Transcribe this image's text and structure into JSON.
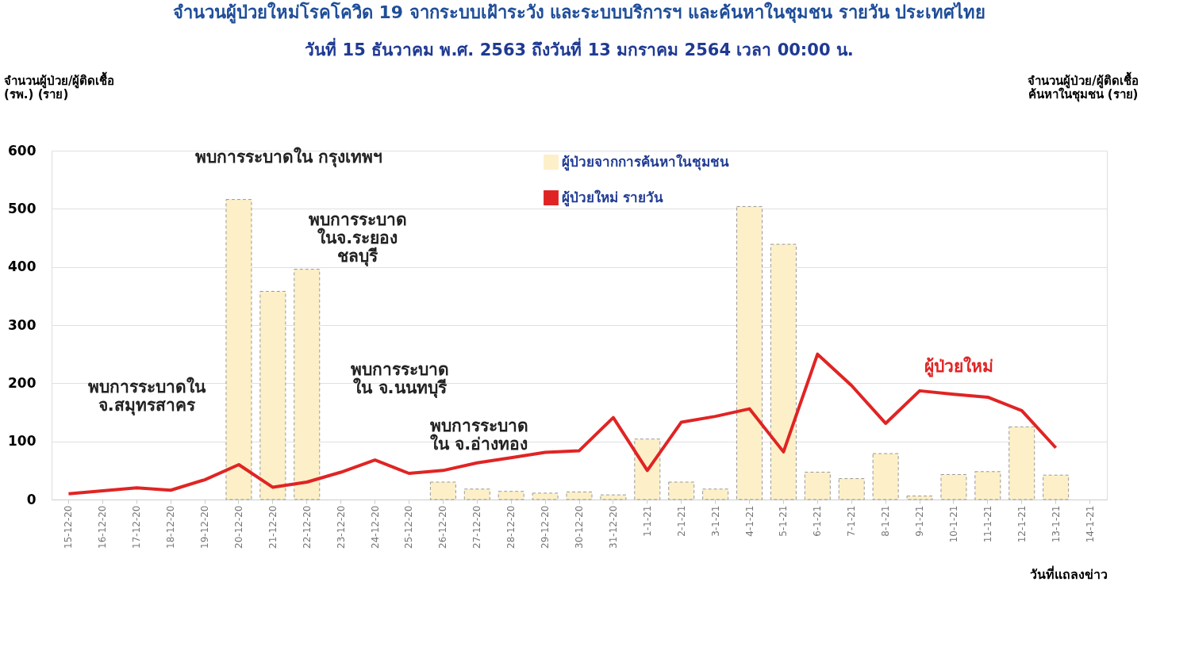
{
  "chart_data": {
    "type": "bar",
    "title": "จำนวนผู้ป่วยใหม่โรคโควิด 19 จากระบบเฝ้าระวัง และระบบบริการฯ และค้นหาในชุมชน รายวัน ประเทศไทย",
    "subtitle": "วันที่ 15 ธันวาคม พ.ศ. 2563 ถึงวันที่ 13 มกราคม 2564 เวลา 00:00 น.",
    "ylabel": "จำนวนผู้ป่วย/ผู้ติดเชื้อ (รพ.) (ราย)",
    "y2label": "จำนวนผู้ป่วย/ผู้ติดเชื้อ ค้นหาในชุมชน (ราย)",
    "xlabel": "วันที่แถลงข่าว",
    "categories": [
      "15-12-20",
      "16-12-20",
      "17-12-20",
      "18-12-20",
      "19-12-20",
      "20-12-20",
      "21-12-20",
      "22-12-20",
      "23-12-20",
      "24-12-20",
      "25-12-20",
      "26-12-20",
      "27-12-20",
      "28-12-20",
      "29-12-20",
      "30-12-20",
      "31-12-20",
      "1-1-21",
      "2-1-21",
      "3-1-21",
      "4-1-21",
      "5-1-21",
      "6-1-21",
      "7-1-21",
      "8-1-21",
      "9-1-21",
      "10-1-21",
      "11-1-21",
      "12-1-21",
      "13-1-21",
      "14-1-21"
    ],
    "series": [
      {
        "name": "ผู้ป่วยจากการค้นหาในชุมชน",
        "color": "#fdf0c8",
        "values": [
          null,
          null,
          null,
          null,
          null,
          516,
          358,
          396,
          null,
          null,
          null,
          30,
          18,
          14,
          11,
          13,
          8,
          104,
          30,
          18,
          504,
          439,
          47,
          36,
          79,
          6,
          43,
          48,
          125,
          42,
          null
        ]
      },
      {
        "name": "ผู้ป่วยใหม่ รายวัน",
        "type": "line",
        "color": "#e02424",
        "values": [
          10,
          15,
          20,
          16,
          34,
          60,
          21,
          30,
          47,
          68,
          45,
          50,
          63,
          72,
          81,
          84,
          141,
          50,
          133,
          143,
          156,
          82,
          250,
          196,
          131,
          187,
          181,
          176,
          153,
          89,
          null
        ]
      }
    ],
    "ylim": [
      0,
      600
    ],
    "yticks": [
      0,
      100,
      200,
      300,
      400,
      500,
      600
    ],
    "grid": "y",
    "legend": "top",
    "marker": "none",
    "line_style": "solid",
    "annotations": [
      "พบการระบาดใน กรุงเทพฯ",
      "พบการระบาด\nในจ.ระยอง\nชลบุรี",
      "พบการระบาดใน\nจ.สมุทรสาคร",
      "พบการระบาด\nใน จ.นนทบุรี",
      "พบการระบาด\nใน จ.อ่างทอง",
      "ผู้ป่วยใหม่"
    ]
  }
}
